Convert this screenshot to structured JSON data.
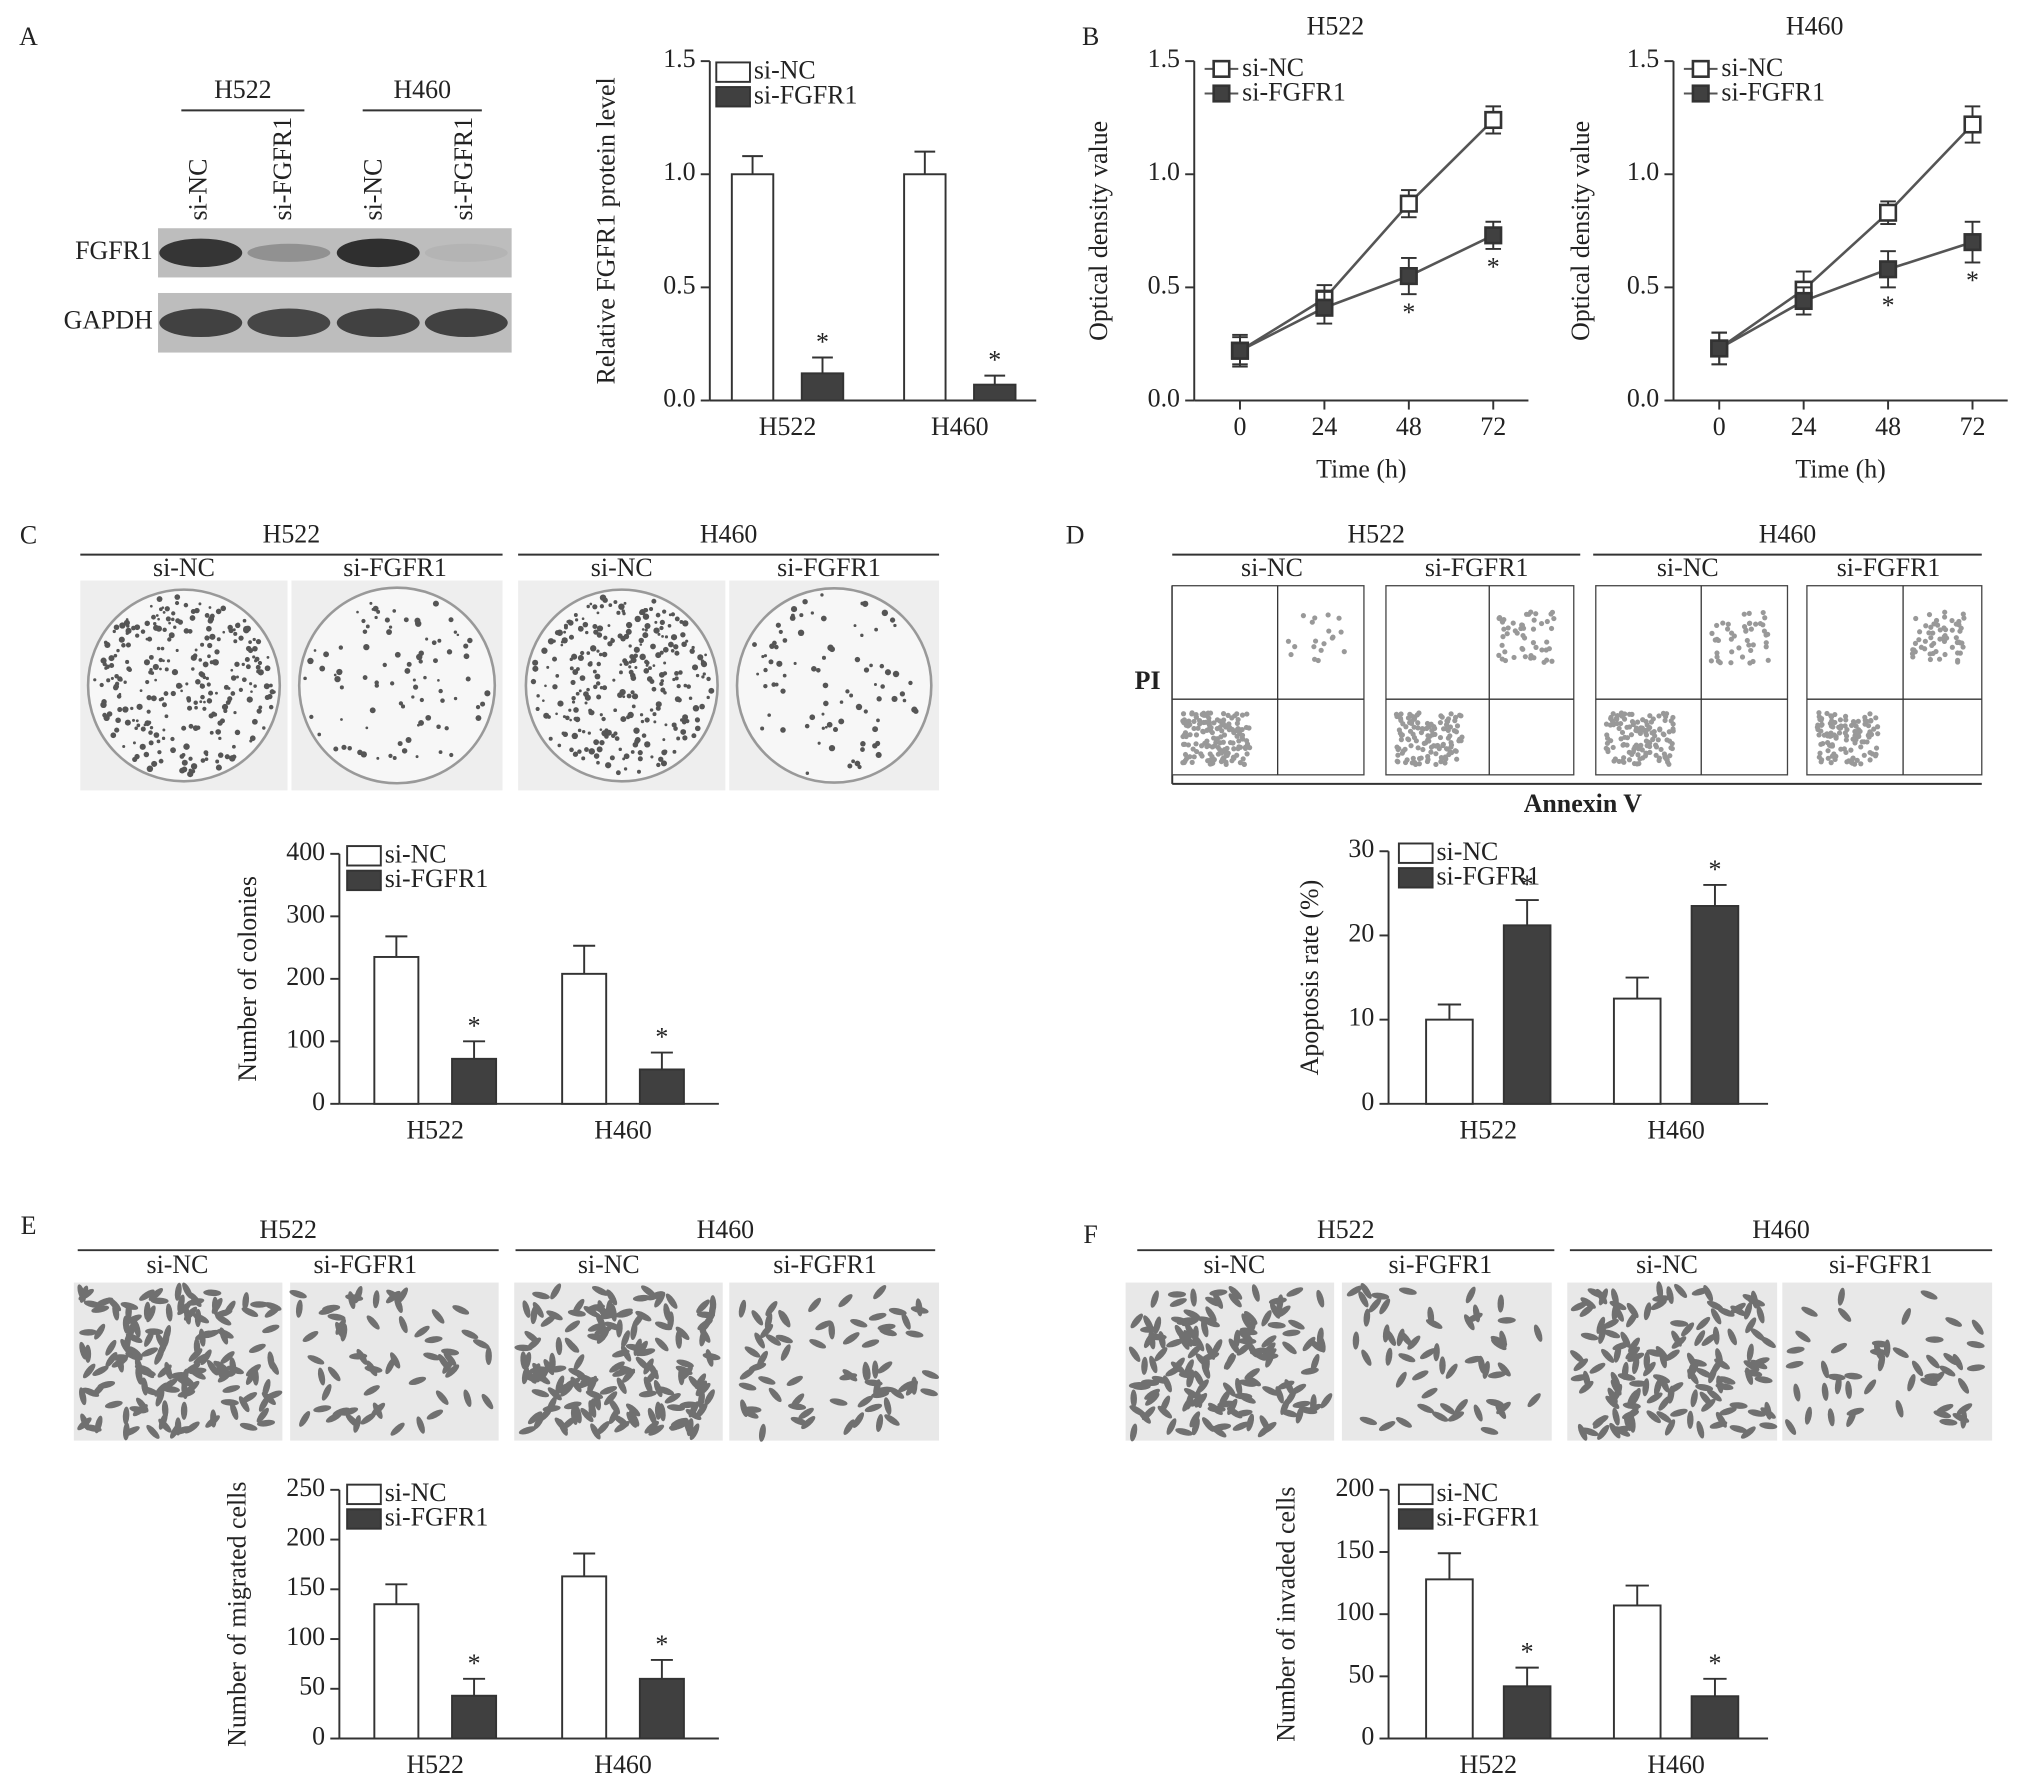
{
  "chart_data": [
    {
      "type": "bar",
      "ylabel": "Relative FGFR1 protein level",
      "categories": [
        "H522",
        "H460"
      ],
      "ylim": [
        0,
        1.5
      ],
      "yticks": [
        {
          "value": 0,
          "label": "0.0"
        },
        {
          "value": 0.5,
          "label": "0.5"
        },
        {
          "value": 1,
          "label": "1.0"
        },
        {
          "value": 1.5,
          "label": "1.5"
        }
      ],
      "series": [
        {
          "name": "si-NC",
          "color": "#ffffff",
          "values": [
            1.0,
            1.0
          ],
          "errors": [
            0.08,
            0.1
          ]
        },
        {
          "name": "si-FGFR1",
          "color": "#404040",
          "values": [
            0.12,
            0.07
          ],
          "errors": [
            0.07,
            0.04
          ],
          "significance": [
            "*",
            "*"
          ]
        }
      ]
    },
    {
      "type": "line",
      "title": "H522",
      "xlabel": "Time (h)",
      "ylabel": "Optical density value",
      "x": [
        0,
        24,
        48,
        72
      ],
      "xlim": [
        -13,
        82
      ],
      "xticks": [
        0,
        24,
        48,
        72
      ],
      "ylim": [
        0,
        1.5
      ],
      "yticks": [
        {
          "value": 0,
          "label": "0.0"
        },
        {
          "value": 0.5,
          "label": "0.5"
        },
        {
          "value": 1,
          "label": "1.0"
        },
        {
          "value": 1.5,
          "label": "1.5"
        }
      ],
      "series": [
        {
          "name": "si-NC",
          "color": "#ffffff",
          "values": [
            0.22,
            0.45,
            0.87,
            1.24
          ],
          "errors": [
            0.07,
            0.06,
            0.06,
            0.06
          ]
        },
        {
          "name": "si-FGFR1",
          "color": "#404040",
          "values": [
            0.22,
            0.41,
            0.55,
            0.73
          ],
          "errors": [
            0.06,
            0.07,
            0.08,
            0.06
          ],
          "significance": [
            null,
            null,
            "*",
            "*"
          ]
        }
      ]
    },
    {
      "type": "line",
      "title": "H460",
      "xlabel": "Time (h)",
      "ylabel": "Optical density value",
      "x": [
        0,
        24,
        48,
        72
      ],
      "xlim": [
        -13,
        82
      ],
      "xticks": [
        0,
        24,
        48,
        72
      ],
      "ylim": [
        0,
        1.5
      ],
      "yticks": [
        {
          "value": 0,
          "label": "0.0"
        },
        {
          "value": 0.5,
          "label": "0.5"
        },
        {
          "value": 1,
          "label": "1.0"
        },
        {
          "value": 1.5,
          "label": "1.5"
        }
      ],
      "series": [
        {
          "name": "si-NC",
          "color": "#ffffff",
          "values": [
            0.23,
            0.49,
            0.83,
            1.22
          ],
          "errors": [
            0.07,
            0.08,
            0.05,
            0.08
          ]
        },
        {
          "name": "si-FGFR1",
          "color": "#404040",
          "values": [
            0.23,
            0.44,
            0.58,
            0.7
          ],
          "errors": [
            0.07,
            0.06,
            0.08,
            0.09
          ],
          "significance": [
            null,
            null,
            "*",
            "*"
          ]
        }
      ]
    },
    {
      "type": "bar",
      "ylabel": "Number of colonies",
      "categories": [
        "H522",
        "H460"
      ],
      "ylim": [
        0,
        400
      ],
      "yticks": [
        0,
        100,
        200,
        300,
        400
      ],
      "series": [
        {
          "name": "si-NC",
          "color": "#ffffff",
          "values": [
            235,
            208
          ],
          "errors": [
            33,
            45
          ]
        },
        {
          "name": "si-FGFR1",
          "color": "#404040",
          "values": [
            72,
            55
          ],
          "errors": [
            28,
            27
          ],
          "significance": [
            "*",
            "*"
          ]
        }
      ]
    },
    {
      "type": "bar",
      "ylabel": "Apoptosis rate (%)",
      "categories": [
        "H522",
        "H460"
      ],
      "ylim": [
        0,
        30
      ],
      "yticks": [
        0,
        10,
        20,
        30
      ],
      "series": [
        {
          "name": "si-NC",
          "color": "#ffffff",
          "values": [
            10,
            12.5
          ],
          "errors": [
            1.8,
            2.5
          ]
        },
        {
          "name": "si-FGFR1",
          "color": "#404040",
          "values": [
            21.2,
            23.5
          ],
          "errors": [
            3,
            2.5
          ],
          "significance": [
            "*",
            "*"
          ]
        }
      ]
    },
    {
      "type": "bar",
      "ylabel": "Number of migrated cells",
      "categories": [
        "H522",
        "H460"
      ],
      "ylim": [
        0,
        250
      ],
      "yticks": [
        0,
        50,
        100,
        150,
        200,
        250
      ],
      "series": [
        {
          "name": "si-NC",
          "color": "#ffffff",
          "values": [
            135,
            163
          ],
          "errors": [
            20,
            23
          ]
        },
        {
          "name": "si-FGFR1",
          "color": "#404040",
          "values": [
            43,
            60
          ],
          "errors": [
            17,
            19
          ],
          "significance": [
            "*",
            "*"
          ]
        }
      ]
    },
    {
      "type": "bar",
      "ylabel": "Number of invaded cells",
      "categories": [
        "H522",
        "H460"
      ],
      "ylim": [
        0,
        200
      ],
      "yticks": [
        0,
        50,
        100,
        150,
        200
      ],
      "series": [
        {
          "name": "si-NC",
          "color": "#ffffff",
          "values": [
            128,
            107
          ],
          "errors": [
            21,
            16
          ]
        },
        {
          "name": "si-FGFR1",
          "color": "#404040",
          "values": [
            42,
            34
          ],
          "errors": [
            15,
            14
          ],
          "significance": [
            "*",
            "*"
          ]
        }
      ]
    }
  ],
  "panels": {
    "letters": [
      "A",
      "B",
      "C",
      "D",
      "E",
      "F"
    ],
    "blot": {
      "groups": [
        "H522",
        "H460"
      ],
      "lanes": [
        "si-NC",
        "si-FGFR1",
        "si-NC",
        "si-FGFR1"
      ],
      "rows": [
        "FGFR1",
        "GAPDH"
      ]
    },
    "colony": {
      "groups": [
        "H522",
        "H460"
      ],
      "lanes": [
        "si-NC",
        "si-FGFR1",
        "si-NC",
        "si-FGFR1"
      ]
    },
    "flow": {
      "groups": [
        "H522",
        "H460"
      ],
      "lanes": [
        "si-NC",
        "si-FGFR1",
        "si-NC",
        "si-FGFR1"
      ],
      "ylabel": "PI",
      "xlabel": "Annexin V"
    },
    "migration": {
      "groups": [
        "H522",
        "H460"
      ],
      "lanes": [
        "si-NC",
        "si-FGFR1",
        "si-NC",
        "si-FGFR1"
      ]
    },
    "invasion": {
      "groups": [
        "H522",
        "H460"
      ],
      "lanes": [
        "si-NC",
        "si-FGFR1",
        "si-NC",
        "si-FGFR1"
      ]
    }
  }
}
